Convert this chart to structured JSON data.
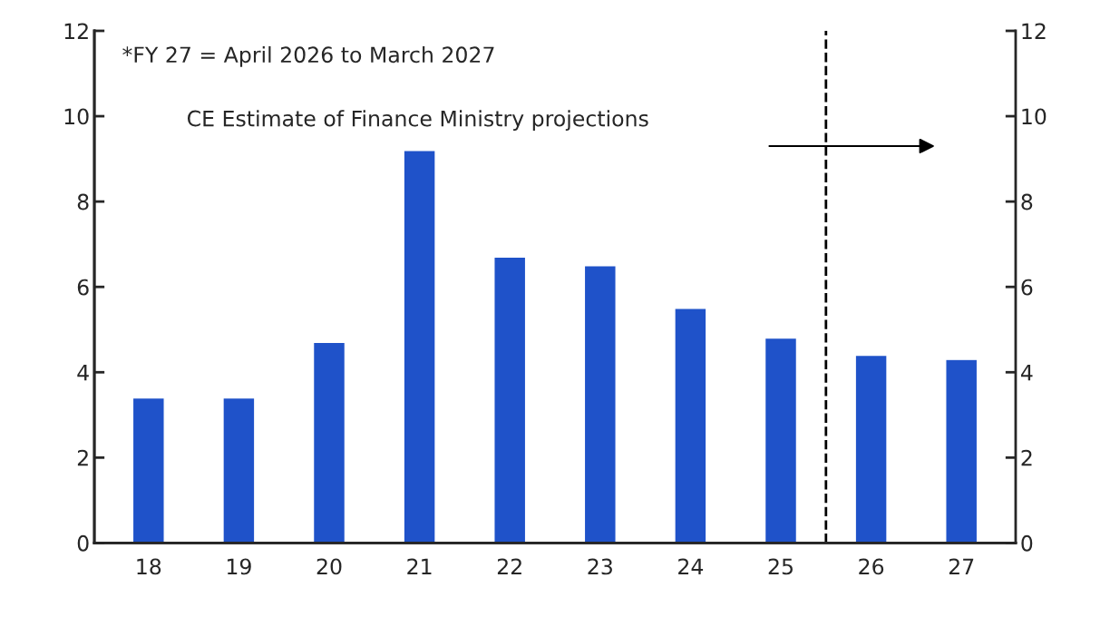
{
  "chart_data": {
    "type": "bar",
    "categories": [
      "18",
      "19",
      "20",
      "21",
      "22",
      "23",
      "24",
      "25",
      "26",
      "27"
    ],
    "values": [
      3.4,
      3.4,
      4.7,
      9.2,
      6.7,
      6.5,
      5.5,
      4.8,
      4.4,
      4.3
    ],
    "color": "#1f52c9",
    "ylim": [
      0,
      12
    ],
    "yticks": [
      0,
      2,
      4,
      6,
      8,
      10,
      12
    ],
    "y2lim": [
      0,
      12
    ],
    "y2ticks": [
      0,
      2,
      4,
      6,
      8,
      10,
      12
    ],
    "annotations": [
      "*FY 27 = April 2026 to March 2027",
      "CE Estimate of Finance Ministry projections"
    ],
    "grid": false,
    "legend": false
  }
}
